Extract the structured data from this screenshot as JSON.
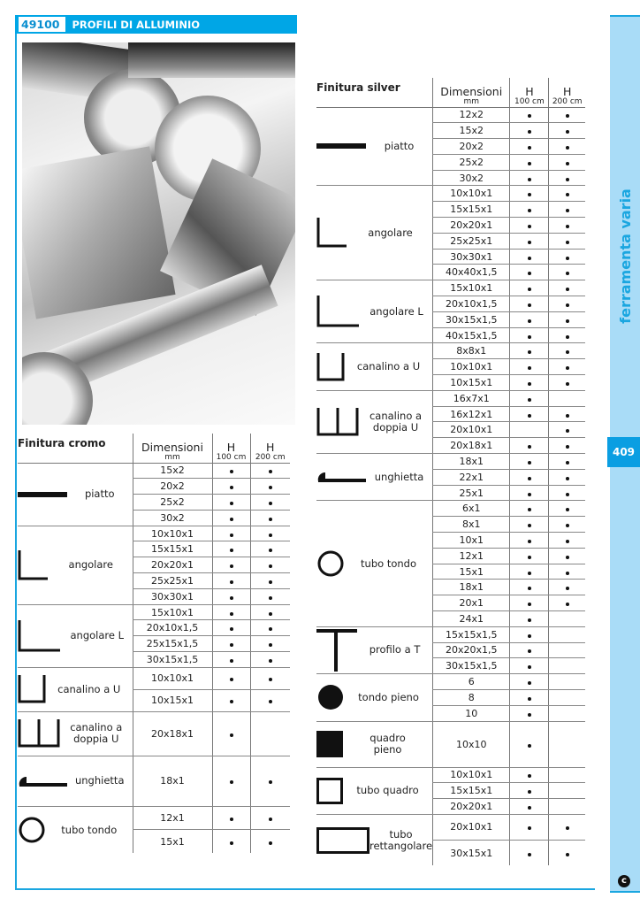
{
  "header": {
    "code": "49100",
    "title": "PROFILI DI ALLUMINIO"
  },
  "sidebar": {
    "category": "ferramenta varia",
    "page_number": "409"
  },
  "colors": {
    "brand_blue": "#00a6e6",
    "sidebar_light": "#a9dcf7"
  },
  "columns": {
    "dimensions": "Dimensioni",
    "dimensions_unit": "mm",
    "h": "H",
    "h100": "100 cm",
    "h200": "200 cm"
  },
  "tables": [
    {
      "finish": "Finitura cromo",
      "groups": [
        {
          "name": "piatto",
          "icon": "flat-bar-icon",
          "rows": [
            {
              "dim": "15x2",
              "h100": true,
              "h200": true
            },
            {
              "dim": "20x2",
              "h100": true,
              "h200": true
            },
            {
              "dim": "25x2",
              "h100": true,
              "h200": true
            },
            {
              "dim": "30x2",
              "h100": true,
              "h200": true
            }
          ]
        },
        {
          "name": "angolare",
          "icon": "angle-icon",
          "rows": [
            {
              "dim": "10x10x1",
              "h100": true,
              "h200": true
            },
            {
              "dim": "15x15x1",
              "h100": true,
              "h200": true
            },
            {
              "dim": "20x20x1",
              "h100": true,
              "h200": true
            },
            {
              "dim": "25x25x1",
              "h100": true,
              "h200": true
            },
            {
              "dim": "30x30x1",
              "h100": true,
              "h200": true
            }
          ]
        },
        {
          "name": "angolare L",
          "icon": "l-angle-icon",
          "rows": [
            {
              "dim": "15x10x1",
              "h100": true,
              "h200": true
            },
            {
              "dim": "20x10x1,5",
              "h100": true,
              "h200": true
            },
            {
              "dim": "25x15x1,5",
              "h100": true,
              "h200": true
            },
            {
              "dim": "30x15x1,5",
              "h100": true,
              "h200": true
            }
          ]
        },
        {
          "name": "canalino a U",
          "icon": "u-channel-icon",
          "rows": [
            {
              "dim": "10x10x1",
              "h100": true,
              "h200": true
            },
            {
              "dim": "10x15x1",
              "h100": true,
              "h200": true
            }
          ]
        },
        {
          "name": "canalino a doppia U",
          "icon": "double-u-channel-icon",
          "rows": [
            {
              "dim": "20x18x1",
              "h100": true,
              "h200": false
            }
          ]
        },
        {
          "name": "unghietta",
          "icon": "edge-trim-icon",
          "rows": [
            {
              "dim": "18x1",
              "h100": true,
              "h200": true
            }
          ]
        },
        {
          "name": "tubo tondo",
          "icon": "round-tube-icon",
          "rows": [
            {
              "dim": "12x1",
              "h100": true,
              "h200": true
            },
            {
              "dim": "15x1",
              "h100": true,
              "h200": true
            }
          ]
        }
      ]
    },
    {
      "finish": "Finitura silver",
      "groups": [
        {
          "name": "piatto",
          "icon": "flat-bar-icon",
          "rows": [
            {
              "dim": "12x2",
              "h100": true,
              "h200": true
            },
            {
              "dim": "15x2",
              "h100": true,
              "h200": true
            },
            {
              "dim": "20x2",
              "h100": true,
              "h200": true
            },
            {
              "dim": "25x2",
              "h100": true,
              "h200": true
            },
            {
              "dim": "30x2",
              "h100": true,
              "h200": true
            }
          ]
        },
        {
          "name": "angolare",
          "icon": "angle-icon",
          "rows": [
            {
              "dim": "10x10x1",
              "h100": true,
              "h200": true
            },
            {
              "dim": "15x15x1",
              "h100": true,
              "h200": true
            },
            {
              "dim": "20x20x1",
              "h100": true,
              "h200": true
            },
            {
              "dim": "25x25x1",
              "h100": true,
              "h200": true
            },
            {
              "dim": "30x30x1",
              "h100": true,
              "h200": true
            },
            {
              "dim": "40x40x1,5",
              "h100": true,
              "h200": true
            }
          ]
        },
        {
          "name": "angolare L",
          "icon": "l-angle-icon",
          "rows": [
            {
              "dim": "15x10x1",
              "h100": true,
              "h200": true
            },
            {
              "dim": "20x10x1,5",
              "h100": true,
              "h200": true
            },
            {
              "dim": "30x15x1,5",
              "h100": true,
              "h200": true
            },
            {
              "dim": "40x15x1,5",
              "h100": true,
              "h200": true
            }
          ]
        },
        {
          "name": "canalino a U",
          "icon": "u-channel-icon",
          "rows": [
            {
              "dim": "8x8x1",
              "h100": true,
              "h200": true
            },
            {
              "dim": "10x10x1",
              "h100": true,
              "h200": true
            },
            {
              "dim": "10x15x1",
              "h100": true,
              "h200": true
            }
          ]
        },
        {
          "name": "canalino a doppia U",
          "icon": "double-u-channel-icon",
          "rows": [
            {
              "dim": "16x7x1",
              "h100": true,
              "h200": false
            },
            {
              "dim": "16x12x1",
              "h100": true,
              "h200": true
            },
            {
              "dim": "20x10x1",
              "h100": false,
              "h200": true
            },
            {
              "dim": "20x18x1",
              "h100": true,
              "h200": true
            }
          ]
        },
        {
          "name": "unghietta",
          "icon": "edge-trim-icon",
          "rows": [
            {
              "dim": "18x1",
              "h100": true,
              "h200": true
            },
            {
              "dim": "22x1",
              "h100": true,
              "h200": true
            },
            {
              "dim": "25x1",
              "h100": true,
              "h200": true
            }
          ]
        },
        {
          "name": "tubo tondo",
          "icon": "round-tube-icon",
          "rows": [
            {
              "dim": "6x1",
              "h100": true,
              "h200": true
            },
            {
              "dim": "8x1",
              "h100": true,
              "h200": true
            },
            {
              "dim": "10x1",
              "h100": true,
              "h200": true
            },
            {
              "dim": "12x1",
              "h100": true,
              "h200": true
            },
            {
              "dim": "15x1",
              "h100": true,
              "h200": true
            },
            {
              "dim": "18x1",
              "h100": true,
              "h200": true
            },
            {
              "dim": "20x1",
              "h100": true,
              "h200": true
            },
            {
              "dim": "24x1",
              "h100": true,
              "h200": false
            }
          ]
        },
        {
          "name": "profilo a T",
          "icon": "t-profile-icon",
          "rows": [
            {
              "dim": "15x15x1,5",
              "h100": true,
              "h200": false
            },
            {
              "dim": "20x20x1,5",
              "h100": true,
              "h200": false
            },
            {
              "dim": "30x15x1,5",
              "h100": true,
              "h200": false
            }
          ]
        },
        {
          "name": "tondo pieno",
          "icon": "solid-round-icon",
          "rows": [
            {
              "dim": "6",
              "h100": true,
              "h200": false
            },
            {
              "dim": "8",
              "h100": true,
              "h200": false
            },
            {
              "dim": "10",
              "h100": true,
              "h200": false
            }
          ]
        },
        {
          "name": "quadro pieno",
          "icon": "solid-square-icon",
          "rows": [
            {
              "dim": "10x10",
              "h100": true,
              "h200": false
            }
          ]
        },
        {
          "name": "tubo quadro",
          "icon": "square-tube-icon",
          "rows": [
            {
              "dim": "10x10x1",
              "h100": true,
              "h200": false
            },
            {
              "dim": "15x15x1",
              "h100": true,
              "h200": false
            },
            {
              "dim": "20x20x1",
              "h100": true,
              "h200": false
            }
          ]
        },
        {
          "name": "tubo rettangolare",
          "icon": "rectangular-tube-icon",
          "rows": [
            {
              "dim": "20x10x1",
              "h100": true,
              "h200": true
            },
            {
              "dim": "30x15x1",
              "h100": true,
              "h200": true
            }
          ]
        }
      ]
    }
  ]
}
